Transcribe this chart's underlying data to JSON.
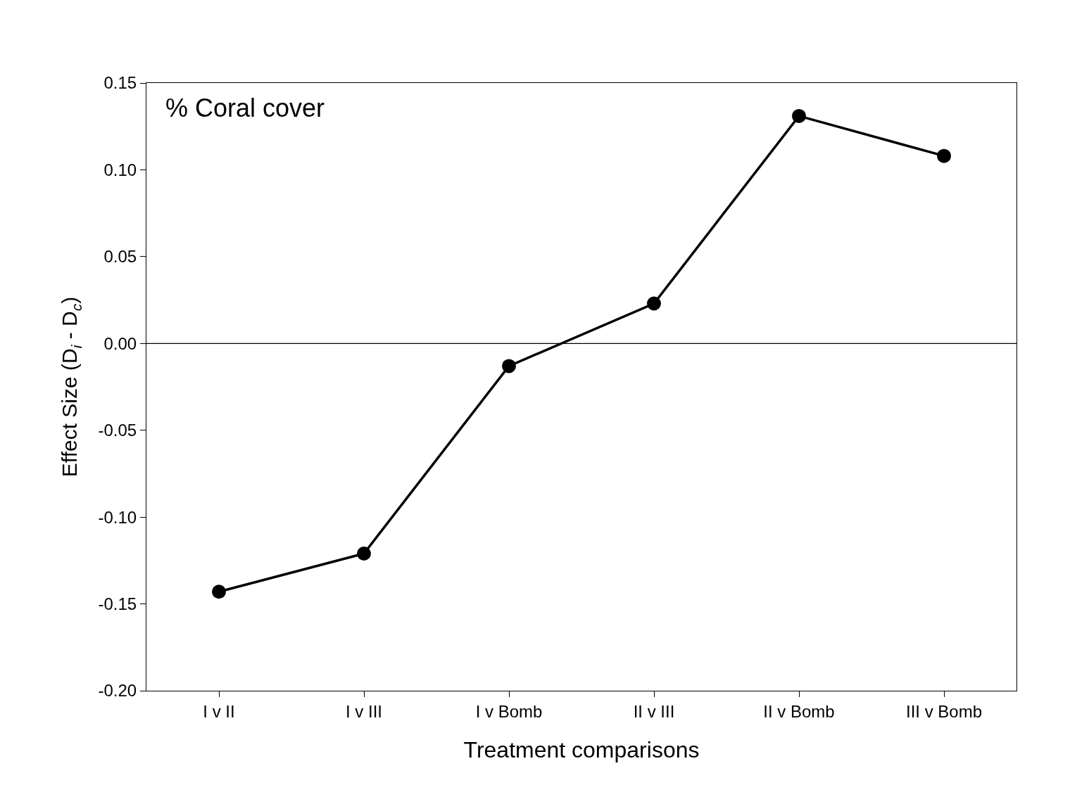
{
  "chart_data": {
    "type": "line",
    "xlabel": "Treatment comparisons",
    "ylabel": "Effect Size (D$_{i}$ - D$_{c}$)",
    "categories": [
      "I v II",
      "I v III",
      "I v Bomb",
      "II v III",
      "II v Bomb",
      "III v Bomb"
    ],
    "series": [
      {
        "color": "#000000",
        "values": [
          -0.143,
          -0.121,
          -0.013,
          0.023,
          0.131,
          0.108
        ]
      }
    ],
    "ylim": [
      -0.2,
      0.15
    ],
    "yticks": [
      {
        "value": -0.2,
        "label": "-0.20"
      },
      {
        "value": -0.15,
        "label": "-0.15"
      },
      {
        "value": -0.1,
        "label": "-0.10"
      },
      {
        "value": -0.05,
        "label": "-0.05"
      },
      {
        "value": 0,
        "label": "0.00"
      },
      {
        "value": 0.05,
        "label": "0.05"
      },
      {
        "value": 0.1,
        "label": "0.10"
      },
      {
        "value": 0.15,
        "label": "0.15"
      }
    ],
    "ref_lines": [
      {
        "axis": "y",
        "value": 0,
        "color": "#000000"
      }
    ],
    "annotations": [
      "% Coral cover"
    ],
    "marker": "circle",
    "line_style": "solid",
    "grid": false,
    "legend": false
  }
}
